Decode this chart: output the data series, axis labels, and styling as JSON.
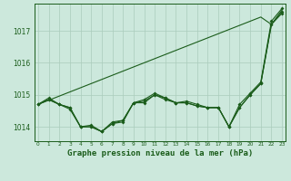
{
  "x": [
    0,
    1,
    2,
    3,
    4,
    5,
    6,
    7,
    8,
    9,
    10,
    11,
    12,
    13,
    14,
    15,
    16,
    17,
    18,
    19,
    20,
    21,
    22,
    23
  ],
  "line_straight": [
    1014.7,
    1014.83,
    1014.96,
    1015.09,
    1015.22,
    1015.35,
    1015.48,
    1015.61,
    1015.74,
    1015.87,
    1016.0,
    1016.13,
    1016.26,
    1016.39,
    1016.52,
    1016.65,
    1016.78,
    1016.91,
    1017.04,
    1017.17,
    1017.3,
    1017.43,
    1017.2,
    1017.65
  ],
  "line_fluctuate1": [
    1014.7,
    1014.85,
    1014.7,
    1014.55,
    1014.0,
    1014.0,
    1013.85,
    1014.1,
    1014.15,
    1014.75,
    1014.8,
    1015.0,
    1014.9,
    1014.75,
    1014.75,
    1014.65,
    1014.6,
    1014.6,
    1014.0,
    1014.6,
    1015.0,
    1015.35,
    1017.2,
    1017.55
  ],
  "line_fluctuate2": [
    1014.7,
    1014.85,
    1014.7,
    1014.6,
    1014.0,
    1014.0,
    1013.85,
    1014.15,
    1014.2,
    1014.75,
    1014.75,
    1015.0,
    1014.85,
    1014.75,
    1014.75,
    1014.65,
    1014.6,
    1014.6,
    1014.0,
    1014.6,
    1015.0,
    1015.35,
    1017.2,
    1017.6
  ],
  "line_fluctuate3": [
    1014.7,
    1014.9,
    1014.7,
    1014.6,
    1014.0,
    1014.05,
    1013.85,
    1014.1,
    1014.2,
    1014.75,
    1014.85,
    1015.05,
    1014.9,
    1014.75,
    1014.8,
    1014.7,
    1014.6,
    1014.6,
    1014.0,
    1014.7,
    1015.05,
    1015.4,
    1017.3,
    1017.7
  ],
  "line_color": "#1a5c1a",
  "bg_color": "#cce8dc",
  "grid_color": "#aaccbb",
  "title": "Graphe pression niveau de la mer (hPa)",
  "ylim_min": 1013.55,
  "ylim_max": 1017.85,
  "yticks": [
    1014,
    1015,
    1016,
    1017
  ],
  "title_fontsize": 6.5
}
